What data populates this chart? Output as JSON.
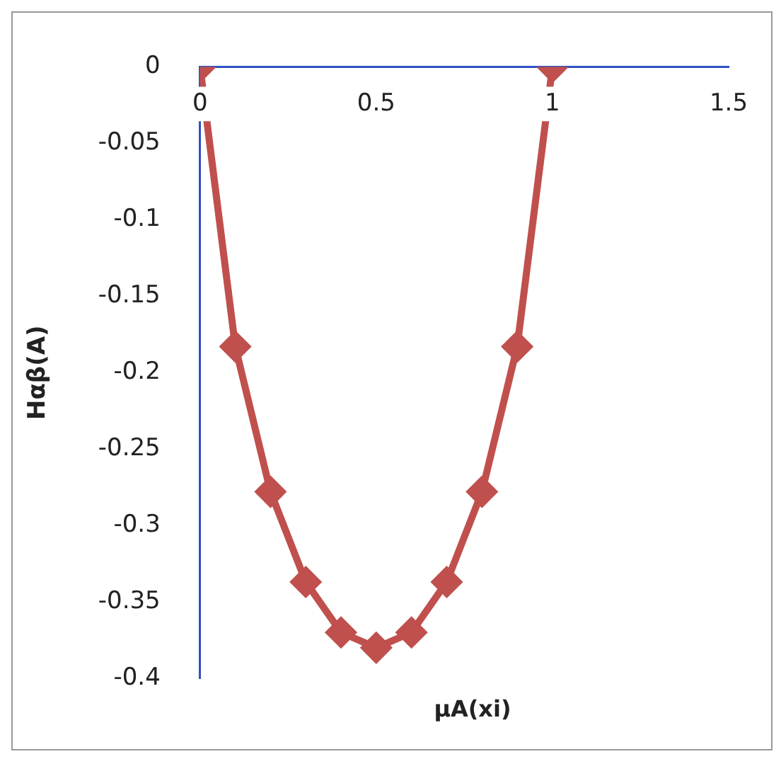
{
  "chart_data": {
    "type": "line",
    "xlabel": "μA(xi)",
    "ylabel": "Hαβ(A)",
    "x": [
      0,
      0.1,
      0.2,
      0.3,
      0.4,
      0.5,
      0.6,
      0.7,
      0.8,
      0.9,
      1
    ],
    "series": [
      {
        "color": "#c0504d",
        "values": [
          0,
          -0.183,
          -0.278,
          -0.337,
          -0.37,
          -0.38,
          -0.37,
          -0.337,
          -0.278,
          -0.183,
          0
        ]
      }
    ],
    "xlim": [
      0,
      1.5
    ],
    "xticks": [
      0,
      0.5,
      1,
      1.5
    ],
    "ylim": [
      -0.4,
      0
    ],
    "yticks": [
      0,
      -0.05,
      -0.1,
      -0.15,
      -0.2,
      -0.25,
      -0.3,
      -0.35,
      -0.4
    ],
    "grid": false,
    "legend": false,
    "marker": "diamond",
    "line_style": "solid"
  }
}
